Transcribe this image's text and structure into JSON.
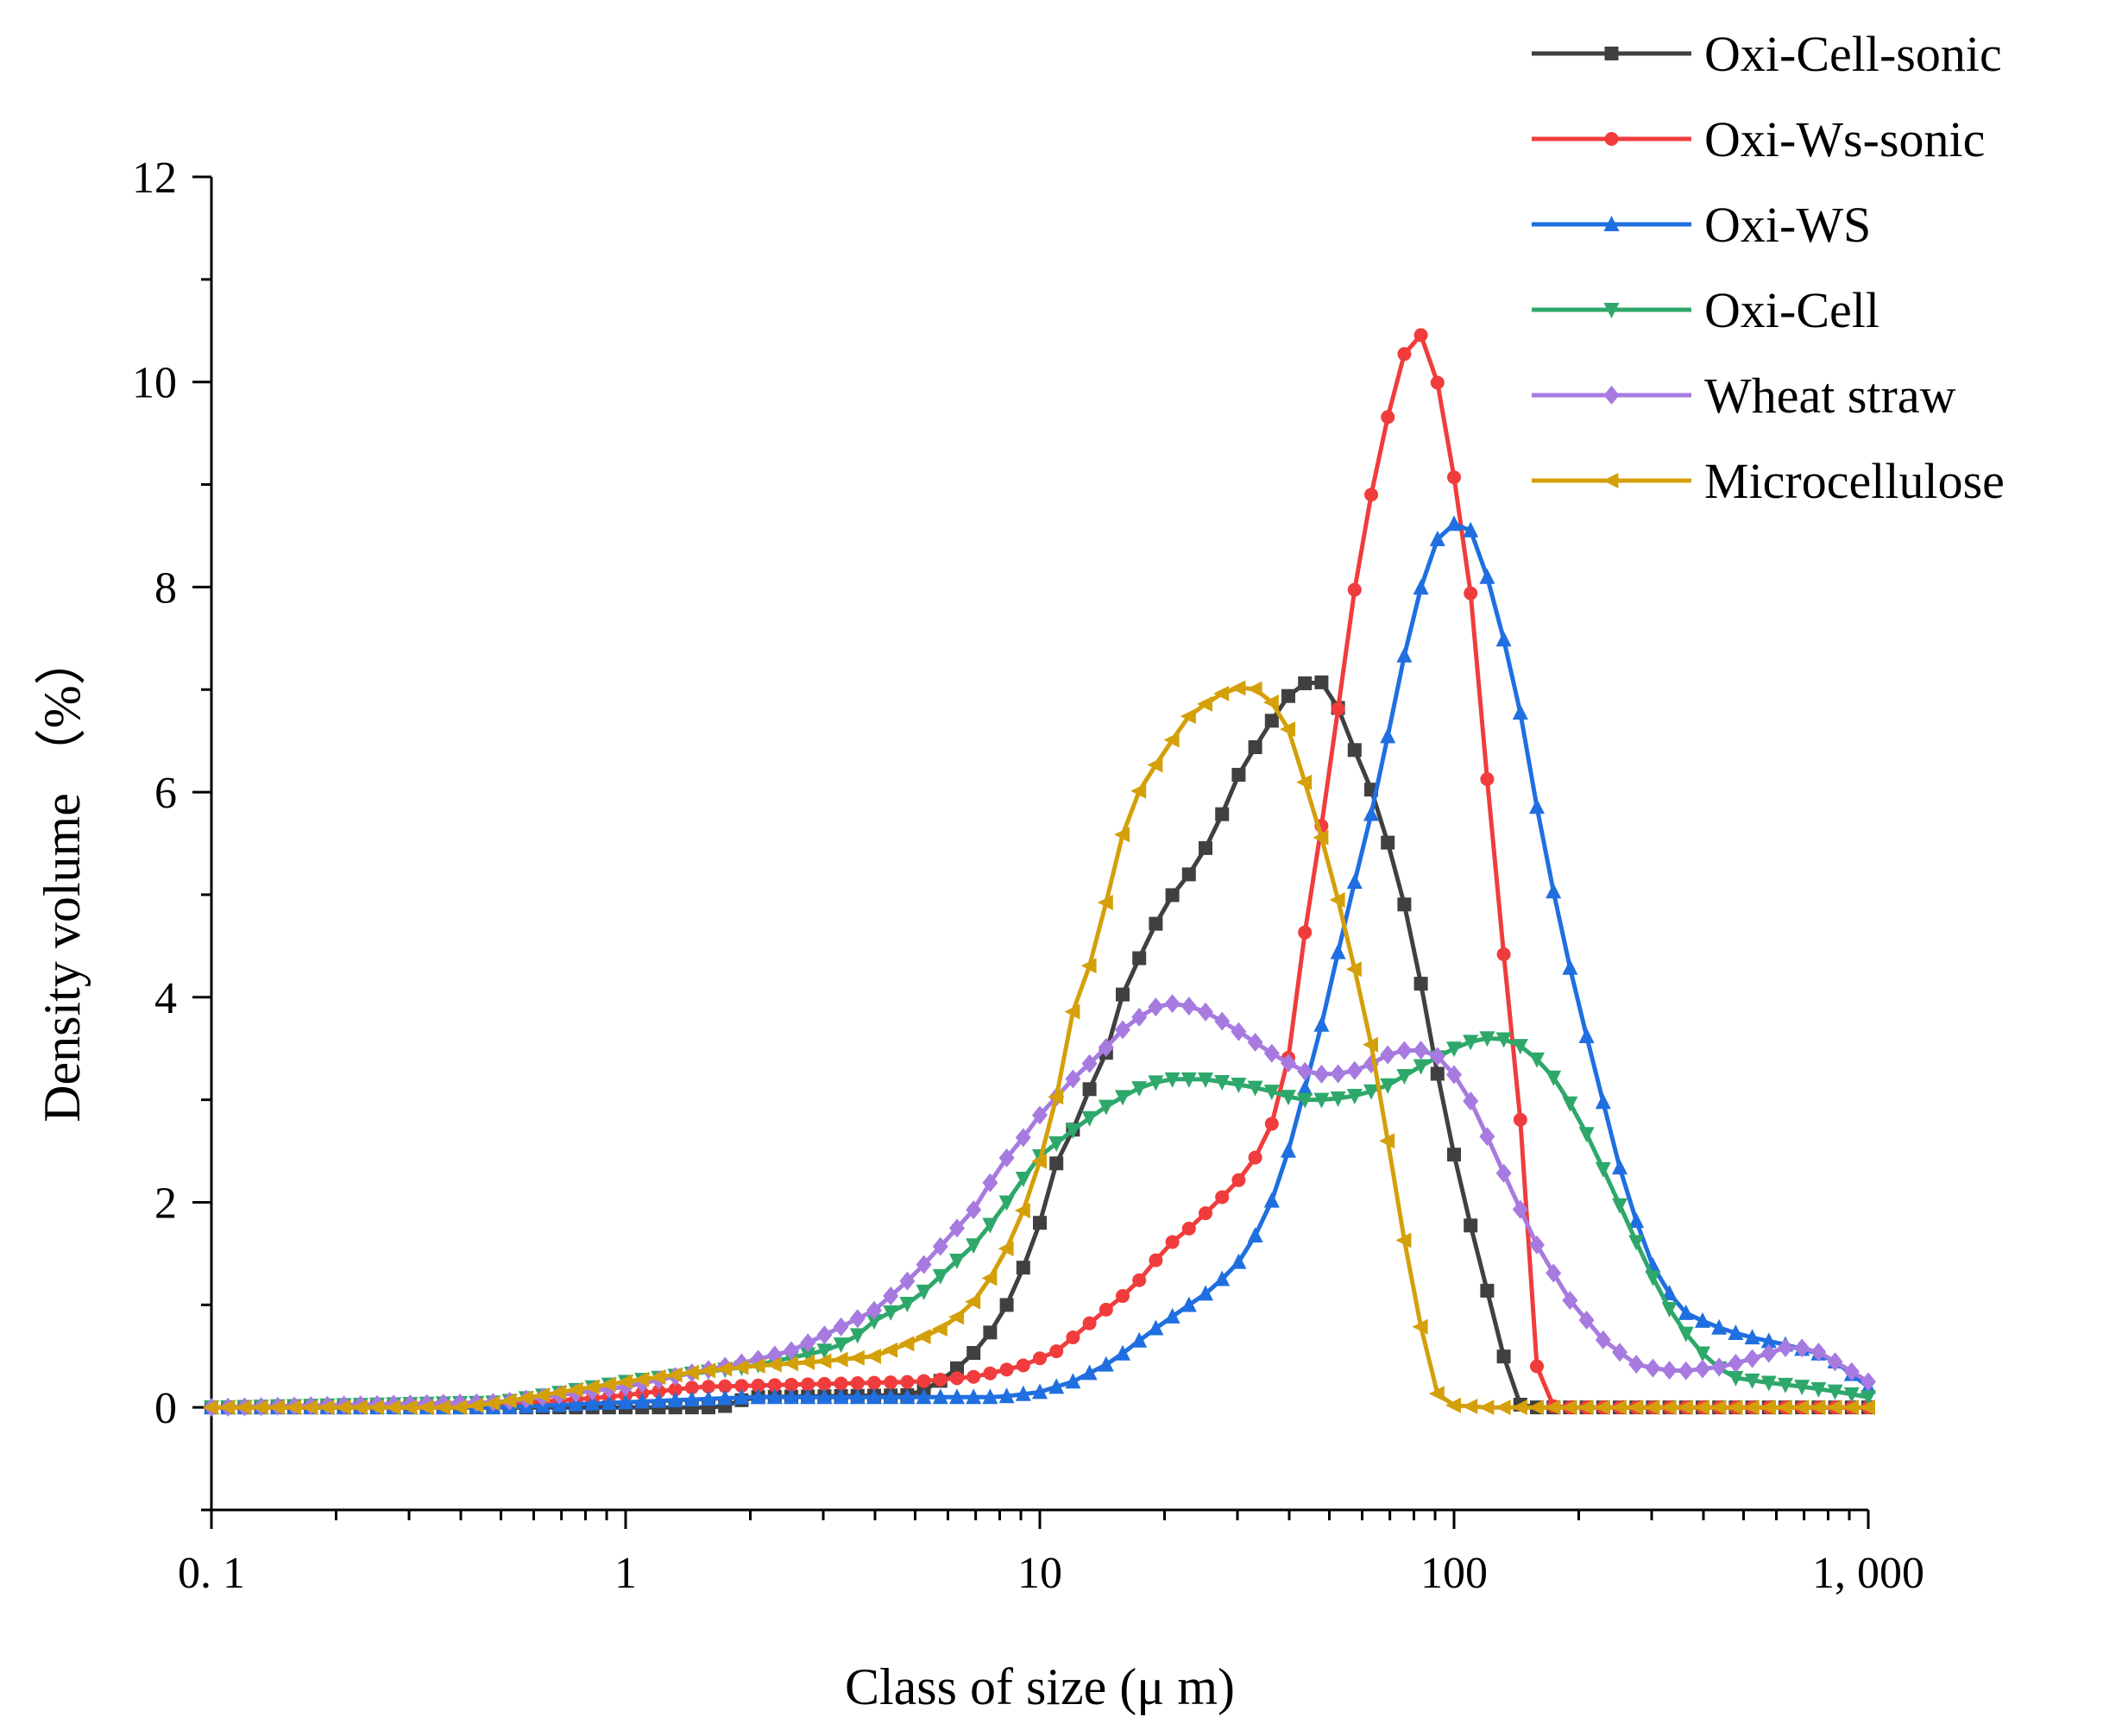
{
  "chart_data": {
    "type": "line",
    "title": "",
    "xlabel": "Class of size (μ m)",
    "ylabel": "Density volume （%）",
    "xscale": "log",
    "xlim": [
      0.1,
      1000
    ],
    "ylim": [
      -1,
      12
    ],
    "x_ticks": [
      0.1,
      1,
      10,
      100,
      1000
    ],
    "x_tick_labels": [
      "0. 1",
      "1",
      "10",
      "100",
      "1, 000"
    ],
    "y_ticks": [
      0,
      2,
      4,
      6,
      8,
      10,
      12
    ],
    "y_tick_labels": [
      "0",
      "2",
      "4",
      "6",
      "8",
      "10",
      "12"
    ],
    "legend_position": "top-right",
    "series": [
      {
        "name": "Oxi-Cell-sonic",
        "color": "#404040",
        "marker": "square",
        "points": [
          [
            0.1,
            0
          ],
          [
            1.7,
            0
          ],
          [
            2,
            0.1
          ],
          [
            5,
            0.12
          ],
          [
            6,
            0.3
          ],
          [
            7,
            0.55
          ],
          [
            8,
            0.85
          ],
          [
            9,
            1.3
          ],
          [
            10,
            1.8
          ],
          [
            11,
            2.4
          ],
          [
            12,
            2.7
          ],
          [
            13,
            3.05
          ],
          [
            15,
            3.6
          ],
          [
            16,
            4.1
          ],
          [
            18,
            4.5
          ],
          [
            20,
            4.9
          ],
          [
            24,
            5.3
          ],
          [
            27,
            5.7
          ],
          [
            30,
            6.15
          ],
          [
            35,
            6.6
          ],
          [
            40,
            6.95
          ],
          [
            45,
            7.1
          ],
          [
            50,
            7.05
          ],
          [
            55,
            6.6
          ],
          [
            65,
            5.9
          ],
          [
            75,
            5.0
          ],
          [
            85,
            3.95
          ],
          [
            95,
            2.85
          ],
          [
            110,
            1.75
          ],
          [
            130,
            0.6
          ],
          [
            140,
            0.05
          ],
          [
            150,
            0
          ],
          [
            1000,
            0
          ]
        ]
      },
      {
        "name": "Oxi-Ws-sonic",
        "color": "#f03c3c",
        "marker": "circle",
        "points": [
          [
            0.1,
            0
          ],
          [
            0.4,
            0
          ],
          [
            0.9,
            0.1
          ],
          [
            1.5,
            0.2
          ],
          [
            5,
            0.25
          ],
          [
            7,
            0.3
          ],
          [
            9,
            0.4
          ],
          [
            11,
            0.55
          ],
          [
            13,
            0.8
          ],
          [
            16,
            1.1
          ],
          [
            18,
            1.3
          ],
          [
            20,
            1.55
          ],
          [
            23,
            1.75
          ],
          [
            26,
            1.95
          ],
          [
            30,
            2.2
          ],
          [
            34,
            2.5
          ],
          [
            38,
            2.95
          ],
          [
            41,
            3.7
          ],
          [
            44,
            4.75
          ],
          [
            50,
            6.15
          ],
          [
            56,
            7.7
          ],
          [
            65,
            9.2
          ],
          [
            75,
            10.25
          ],
          [
            85,
            10.5
          ],
          [
            95,
            9.7
          ],
          [
            110,
            7.9
          ],
          [
            125,
            5.35
          ],
          [
            145,
            2.75
          ],
          [
            160,
            0.15
          ],
          [
            175,
            0
          ],
          [
            1000,
            0
          ]
        ]
      },
      {
        "name": "Oxi-WS",
        "color": "#1f6fe0",
        "marker": "triangle-up",
        "points": [
          [
            0.1,
            0
          ],
          [
            0.5,
            0
          ],
          [
            1,
            0.05
          ],
          [
            2,
            0.1
          ],
          [
            8,
            0.1
          ],
          [
            10,
            0.15
          ],
          [
            12,
            0.25
          ],
          [
            15,
            0.45
          ],
          [
            18,
            0.7
          ],
          [
            22,
            0.95
          ],
          [
            26,
            1.15
          ],
          [
            30,
            1.4
          ],
          [
            34,
            1.75
          ],
          [
            38,
            2.2
          ],
          [
            42,
            2.85
          ],
          [
            48,
            3.75
          ],
          [
            55,
            4.8
          ],
          [
            65,
            6.0
          ],
          [
            75,
            7.25
          ],
          [
            85,
            8.15
          ],
          [
            95,
            8.65
          ],
          [
            110,
            8.55
          ],
          [
            125,
            7.9
          ],
          [
            145,
            6.75
          ],
          [
            165,
            5.45
          ],
          [
            195,
            4.1
          ],
          [
            230,
            2.95
          ],
          [
            260,
            2.1
          ],
          [
            300,
            1.4
          ],
          [
            350,
            0.95
          ],
          [
            420,
            0.8
          ],
          [
            500,
            0.7
          ],
          [
            650,
            0.6
          ],
          [
            800,
            0.5
          ],
          [
            1000,
            0.2
          ]
        ]
      },
      {
        "name": "Oxi-Cell",
        "color": "#2ea86a",
        "marker": "triangle-down",
        "points": [
          [
            0.1,
            0
          ],
          [
            0.5,
            0.05
          ],
          [
            1,
            0.25
          ],
          [
            2,
            0.4
          ],
          [
            3,
            0.55
          ],
          [
            3.5,
            0.65
          ],
          [
            4,
            0.85
          ],
          [
            5,
            1.05
          ],
          [
            6,
            1.35
          ],
          [
            7,
            1.6
          ],
          [
            8,
            1.9
          ],
          [
            9,
            2.2
          ],
          [
            10,
            2.45
          ],
          [
            12,
            2.7
          ],
          [
            14,
            2.9
          ],
          [
            17,
            3.1
          ],
          [
            20,
            3.2
          ],
          [
            25,
            3.2
          ],
          [
            30,
            3.15
          ],
          [
            35,
            3.1
          ],
          [
            42,
            3.0
          ],
          [
            50,
            3.0
          ],
          [
            60,
            3.05
          ],
          [
            70,
            3.15
          ],
          [
            85,
            3.35
          ],
          [
            100,
            3.5
          ],
          [
            115,
            3.6
          ],
          [
            130,
            3.6
          ],
          [
            150,
            3.5
          ],
          [
            180,
            3.15
          ],
          [
            210,
            2.65
          ],
          [
            240,
            2.15
          ],
          [
            280,
            1.55
          ],
          [
            320,
            1.05
          ],
          [
            380,
            0.6
          ],
          [
            460,
            0.3
          ],
          [
            550,
            0.25
          ],
          [
            700,
            0.2
          ],
          [
            850,
            0.15
          ],
          [
            1000,
            0.1
          ]
        ]
      },
      {
        "name": "Wheat straw",
        "color": "#a77ae0",
        "marker": "diamond",
        "points": [
          [
            0.1,
            0
          ],
          [
            0.5,
            0.05
          ],
          [
            1,
            0.2
          ],
          [
            1.5,
            0.35
          ],
          [
            2,
            0.45
          ],
          [
            2.5,
            0.55
          ],
          [
            3,
            0.7
          ],
          [
            4,
            0.95
          ],
          [
            5,
            1.3
          ],
          [
            6,
            1.65
          ],
          [
            7,
            1.95
          ],
          [
            8,
            2.35
          ],
          [
            9,
            2.6
          ],
          [
            10,
            2.85
          ],
          [
            12,
            3.2
          ],
          [
            14,
            3.45
          ],
          [
            16,
            3.7
          ],
          [
            18,
            3.85
          ],
          [
            20,
            3.95
          ],
          [
            24,
            3.9
          ],
          [
            28,
            3.75
          ],
          [
            32,
            3.6
          ],
          [
            38,
            3.4
          ],
          [
            45,
            3.25
          ],
          [
            52,
            3.25
          ],
          [
            60,
            3.3
          ],
          [
            70,
            3.45
          ],
          [
            80,
            3.5
          ],
          [
            90,
            3.45
          ],
          [
            105,
            3.15
          ],
          [
            120,
            2.65
          ],
          [
            140,
            2.05
          ],
          [
            160,
            1.55
          ],
          [
            190,
            1.05
          ],
          [
            230,
            0.65
          ],
          [
            280,
            0.4
          ],
          [
            350,
            0.35
          ],
          [
            450,
            0.4
          ],
          [
            550,
            0.5
          ],
          [
            650,
            0.6
          ],
          [
            750,
            0.55
          ],
          [
            870,
            0.4
          ],
          [
            1000,
            0.25
          ]
        ]
      },
      {
        "name": "Microcellulose",
        "color": "#d4a00a",
        "marker": "triangle-left",
        "points": [
          [
            0.1,
            0
          ],
          [
            0.4,
            0
          ],
          [
            0.5,
            0.05
          ],
          [
            0.7,
            0.15
          ],
          [
            1,
            0.25
          ],
          [
            1.5,
            0.35
          ],
          [
            2,
            0.4
          ],
          [
            3,
            0.45
          ],
          [
            4,
            0.5
          ],
          [
            5,
            0.65
          ],
          [
            6,
            0.8
          ],
          [
            7,
            1.05
          ],
          [
            8,
            1.4
          ],
          [
            9,
            1.85
          ],
          [
            10,
            2.4
          ],
          [
            11,
            3.05
          ],
          [
            12,
            3.85
          ],
          [
            14,
            4.6
          ],
          [
            15,
            5.3
          ],
          [
            17,
            5.95
          ],
          [
            20,
            6.4
          ],
          [
            23,
            6.75
          ],
          [
            27,
            6.95
          ],
          [
            32,
            7.05
          ],
          [
            36,
            6.9
          ],
          [
            40,
            6.6
          ],
          [
            44,
            6.05
          ],
          [
            50,
            5.3
          ],
          [
            57,
            4.35
          ],
          [
            65,
            3.3
          ],
          [
            72,
            2.15
          ],
          [
            80,
            1.1
          ],
          [
            90,
            0.15
          ],
          [
            100,
            0.02
          ],
          [
            120,
            0
          ],
          [
            1000,
            0
          ]
        ]
      }
    ]
  }
}
